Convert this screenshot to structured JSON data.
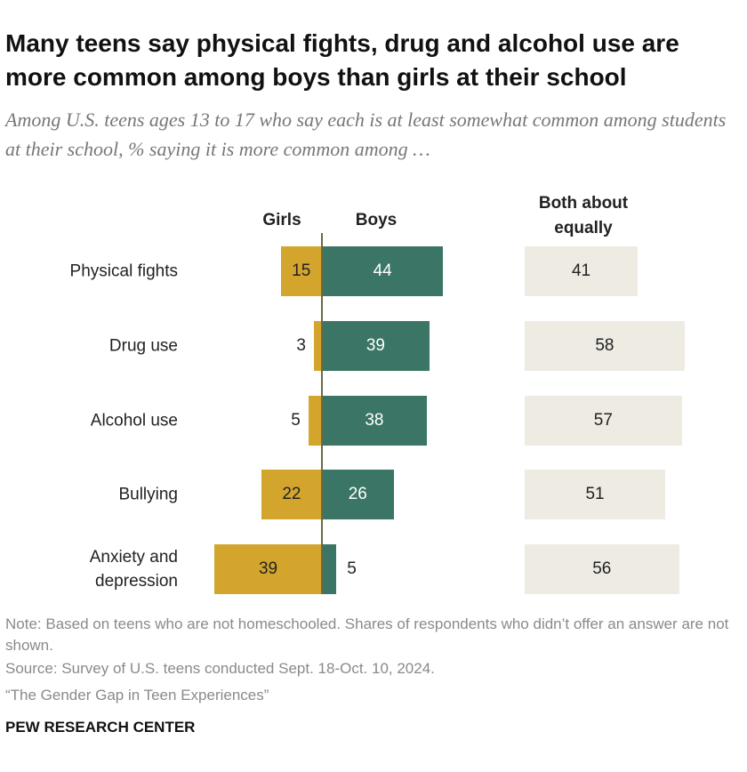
{
  "chart_data": {
    "type": "diverging-bar",
    "title": "Many teens say physical fights, drug and alcohol use are more common among boys than girls at their school",
    "subtitle": "Among U.S. teens ages 13 to 17 who say each is at least somewhat common among students at their school, % saying it is more common among …",
    "categories": [
      "Physical fights",
      "Drug use",
      "Alcohol use",
      "Bullying",
      "Anxiety and depression"
    ],
    "series": [
      {
        "name": "Girls",
        "color": "#d3a52d",
        "values": [
          15,
          3,
          5,
          22,
          39
        ]
      },
      {
        "name": "Boys",
        "color": "#3a7565",
        "values": [
          44,
          39,
          38,
          26,
          5
        ]
      },
      {
        "name": "Both about equally",
        "color": "#eeebe3",
        "values": [
          41,
          58,
          57,
          51,
          56
        ]
      }
    ],
    "note": "Note: Based on teens who are not homeschooled. Shares of respondents who didn’t offer an answer are not shown.",
    "source": "Source: Survey of U.S. teens conducted Sept. 18-Oct. 10, 2024.",
    "report": "“The Gender Gap in Teen Experiences”",
    "credit": "PEW RESEARCH CENTER"
  }
}
